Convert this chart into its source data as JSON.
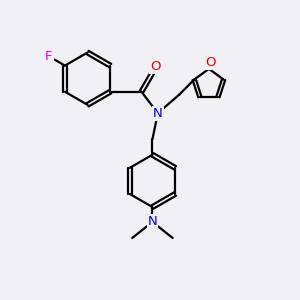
{
  "background_color": "#f0f0f5",
  "bond_color": "#000000",
  "atom_colors": {
    "F": "#ee00ee",
    "O": "#dd0000",
    "N": "#0000dd",
    "C": "#000000"
  },
  "bond_width": 1.6,
  "font_size_atoms": 9.5
}
